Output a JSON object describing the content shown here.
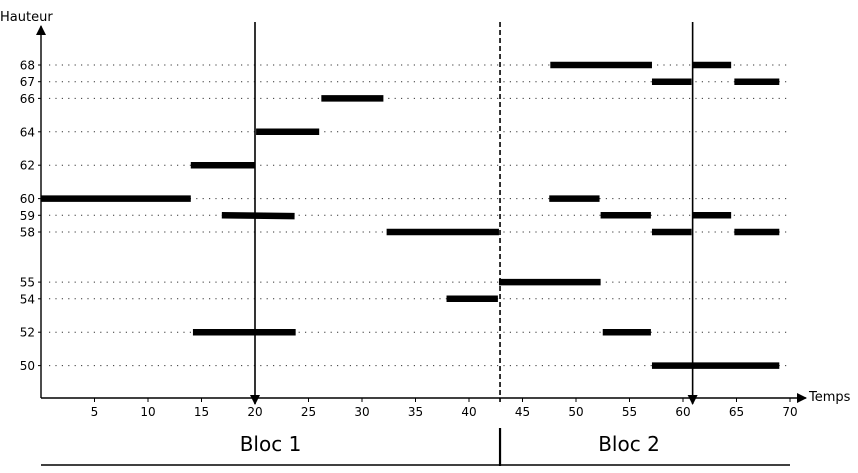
{
  "chart_data": {
    "type": "diagram",
    "ylabel": "Hauteur",
    "xlabel": "Temps",
    "x_ticks": [
      5,
      10,
      15,
      20,
      25,
      30,
      35,
      40,
      45,
      50,
      55,
      60,
      65,
      70
    ],
    "y_ticks": [
      68,
      67,
      66,
      64,
      62,
      60,
      59,
      58,
      55,
      54,
      52,
      50
    ],
    "grid": "dotted horizontal lines at each labelled height",
    "markers": [
      {
        "time": 20,
        "style": "solid",
        "arrow": "down"
      },
      {
        "time": 42.9,
        "style": "dashed"
      },
      {
        "time": 60.9,
        "style": "solid",
        "arrow": "down"
      }
    ],
    "blocks": [
      {
        "label": "Bloc 1",
        "start": 0,
        "end": 42.9
      },
      {
        "label": "Bloc 2",
        "start": 42.9,
        "end": 70
      }
    ],
    "segments": [
      {
        "pitch": 60,
        "start": 0,
        "end": 14
      },
      {
        "pitch": 62,
        "start": 14,
        "end": 20
      },
      {
        "pitch": 52,
        "start": 14.2,
        "end": 23.8
      },
      {
        "pitch": 59,
        "start": 16.9,
        "end": 23.7,
        "pitch_end": 58.95
      },
      {
        "pitch": 64,
        "start": 20.1,
        "end": 26
      },
      {
        "pitch": 66,
        "start": 26.2,
        "end": 32
      },
      {
        "pitch": 58,
        "start": 32.3,
        "end": 42.8
      },
      {
        "pitch": 54,
        "start": 37.9,
        "end": 42.7
      },
      {
        "pitch": 55,
        "start": 42.8,
        "end": 52.3
      },
      {
        "pitch": 60,
        "start": 47.5,
        "end": 52.2
      },
      {
        "pitch": 68,
        "start": 47.6,
        "end": 57.1
      },
      {
        "pitch": 59,
        "start": 52.3,
        "end": 57
      },
      {
        "pitch": 52,
        "start": 52.5,
        "end": 57
      },
      {
        "pitch": 67,
        "start": 57.1,
        "end": 60.8
      },
      {
        "pitch": 58,
        "start": 57.1,
        "end": 60.8
      },
      {
        "pitch": 50,
        "start": 57.1,
        "end": 69
      },
      {
        "pitch": 68,
        "start": 60.9,
        "end": 64.5
      },
      {
        "pitch": 59,
        "start": 60.9,
        "end": 64.5
      },
      {
        "pitch": 67,
        "start": 64.8,
        "end": 69
      },
      {
        "pitch": 58,
        "start": 64.8,
        "end": 69
      }
    ]
  }
}
